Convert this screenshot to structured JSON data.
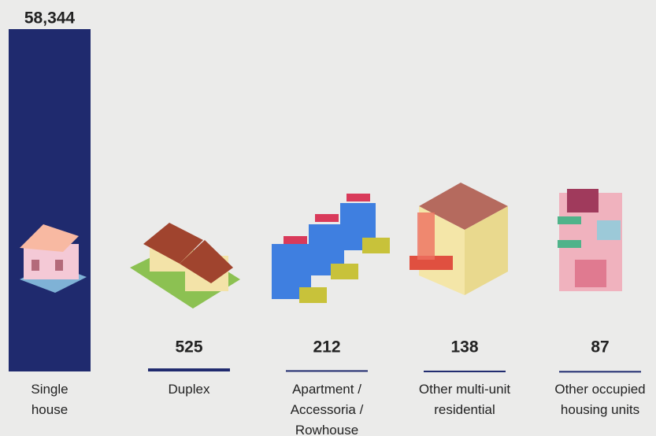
{
  "chart_data": {
    "type": "bar",
    "categories": [
      "Single house",
      "Duplex",
      "Apartment / Accessoria / Rowhouse",
      "Other multi-unit residential",
      "Other occupied housing units"
    ],
    "values": [
      58344,
      525,
      212,
      138,
      87
    ],
    "value_labels": [
      "58,344",
      "525",
      "212",
      "138",
      "87"
    ],
    "color": "#1f2a6e"
  }
}
